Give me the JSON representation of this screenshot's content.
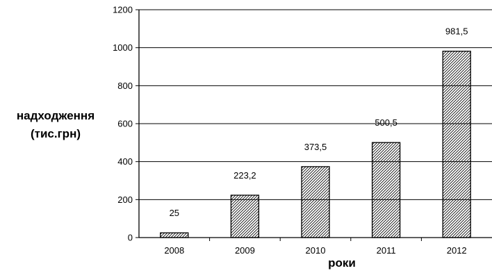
{
  "chart_data": {
    "type": "bar",
    "categories": [
      "2008",
      "2009",
      "2010",
      "2011",
      "2012"
    ],
    "values": [
      25,
      223.2,
      373.5,
      500.5,
      981.5
    ],
    "data_labels": [
      "25",
      "223,2",
      "373,5",
      "500,5",
      "981,5"
    ],
    "title": "",
    "xlabel": "роки",
    "ylabel_lines": [
      "надходження",
      "(тис.грн)"
    ],
    "ylim": [
      0,
      1200
    ],
    "yticks": [
      0,
      200,
      400,
      600,
      800,
      1000,
      1200
    ],
    "grid": true,
    "bar_fill": "diagonal-hatch",
    "colors": {
      "bar_stroke": "#000000",
      "hatch": "#000000",
      "grid": "#000000",
      "background": "#ffffff"
    }
  }
}
